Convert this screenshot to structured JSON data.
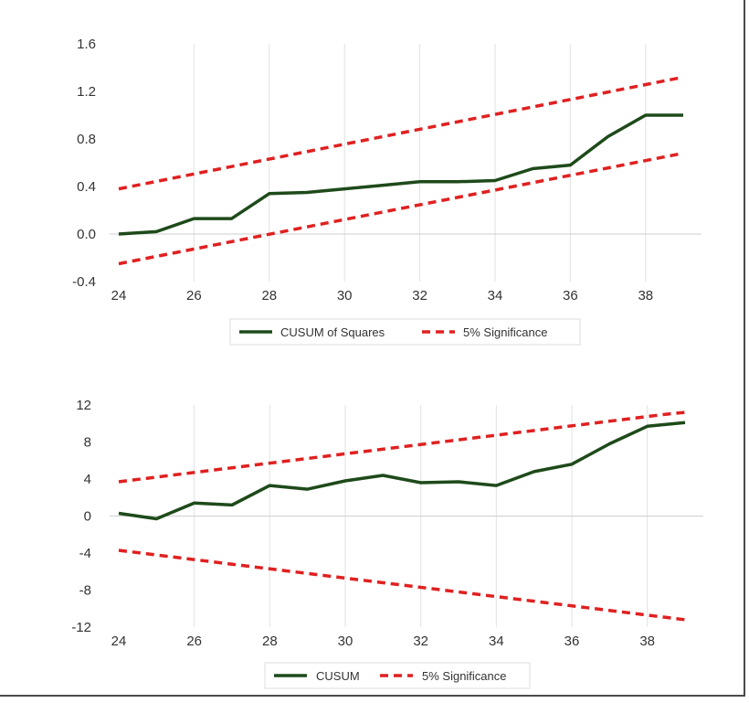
{
  "chart_data": [
    {
      "type": "line",
      "title": "",
      "xlabel": "",
      "ylabel": "",
      "xlim": [
        24,
        39
      ],
      "ylim": [
        -0.4,
        1.6
      ],
      "x_ticks": [
        "24",
        "26",
        "28",
        "30",
        "32",
        "34",
        "36",
        "38"
      ],
      "y_ticks": [
        "-0.4",
        "0.0",
        "0.4",
        "0.8",
        "1.2",
        "1.6"
      ],
      "grid": "vertical",
      "legend_position": "bottom",
      "series": [
        {
          "name": "CUSUM of Squares",
          "color": "#1e4a1a",
          "style": "solid",
          "x": [
            24,
            25,
            26,
            27,
            28,
            29,
            30,
            31,
            32,
            33,
            34,
            35,
            36,
            37,
            38,
            39
          ],
          "y": [
            0.0,
            0.02,
            0.13,
            0.13,
            0.34,
            0.35,
            0.38,
            0.41,
            0.44,
            0.44,
            0.45,
            0.55,
            0.58,
            0.82,
            1.0,
            1.0
          ]
        },
        {
          "name": "5% Significance",
          "color": "#e02020",
          "style": "dashed",
          "x": [
            24,
            39
          ],
          "y": [
            0.38,
            1.32
          ]
        },
        {
          "name": "",
          "color": "#e02020",
          "style": "dashed",
          "x": [
            24,
            39
          ],
          "y": [
            -0.25,
            0.68
          ]
        }
      ]
    },
    {
      "type": "line",
      "title": "",
      "xlabel": "",
      "ylabel": "",
      "xlim": [
        24,
        39
      ],
      "ylim": [
        -12,
        12
      ],
      "x_ticks": [
        "24",
        "26",
        "28",
        "30",
        "32",
        "34",
        "36",
        "38"
      ],
      "y_ticks": [
        "-12",
        "-8",
        "-4",
        "0",
        "4",
        "8",
        "12"
      ],
      "grid": "vertical",
      "legend_position": "bottom",
      "series": [
        {
          "name": "CUSUM",
          "color": "#1e4a1a",
          "style": "solid",
          "x": [
            24,
            25,
            26,
            27,
            28,
            29,
            30,
            31,
            32,
            33,
            34,
            35,
            36,
            37,
            38,
            39
          ],
          "y": [
            0.3,
            -0.3,
            1.4,
            1.2,
            3.3,
            2.9,
            3.8,
            4.4,
            3.6,
            3.7,
            3.3,
            4.8,
            5.6,
            7.8,
            9.7,
            10.1
          ]
        },
        {
          "name": "5% Significance",
          "color": "#e02020",
          "style": "dashed",
          "x": [
            24,
            38.5,
            39
          ],
          "y": [
            3.7,
            11.0,
            11.2
          ]
        },
        {
          "name": "",
          "color": "#e02020",
          "style": "dashed",
          "x": [
            24,
            39
          ],
          "y": [
            -3.7,
            -11.2
          ]
        }
      ]
    }
  ]
}
